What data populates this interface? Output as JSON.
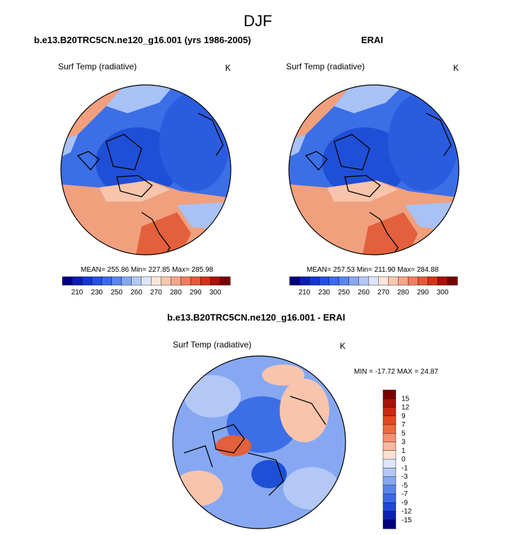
{
  "page": {
    "title": "DJF"
  },
  "panels": [
    {
      "title": "b.e13.B20TRC5CN.ne120_g16.001 (yrs 1986-2005)",
      "variable": "Surf Temp (radiative)",
      "units": "K",
      "stats": "MEAN= 255.86  Min= 227.85  Max= 285.98"
    },
    {
      "title": "ERAI",
      "variable": "Surf Temp (radiative)",
      "units": "K",
      "stats": "MEAN= 257.53  Min= 211.90  Max= 284.88"
    },
    {
      "title": "b.e13.B20TRC5CN.ne120_g16.001 - ERAI",
      "variable": "Surf Temp (radiative)",
      "units": "K",
      "stats": "MIN = -17.72 MAX =  24.87"
    }
  ],
  "abs_colorbar": {
    "labels": [
      "210",
      "230",
      "250",
      "260",
      "270",
      "280",
      "290",
      "300"
    ],
    "colors": [
      "#00007f",
      "#0a1fb0",
      "#1437d0",
      "#2450e0",
      "#3a6ae8",
      "#5a86ee",
      "#86a8f2",
      "#b4c8f6",
      "#dde6fa",
      "#fbe6dc",
      "#f8c8b0",
      "#f4a688",
      "#ee8060",
      "#e45a3a",
      "#d03418",
      "#a81208",
      "#7a0000"
    ]
  },
  "diff_colorbar": {
    "labels": [
      "15",
      "12",
      "9",
      "7",
      "5",
      "3",
      "1",
      "0",
      "-1",
      "-3",
      "-5",
      "-7",
      "-9",
      "-12",
      "-15"
    ],
    "colors": [
      "#7a0000",
      "#a81208",
      "#cc2a10",
      "#e4481e",
      "#ee6a3c",
      "#f49070",
      "#f8b8a0",
      "#fbe0d4",
      "#dce6fa",
      "#b4c8f6",
      "#86a8f2",
      "#5a86ee",
      "#3a6ae8",
      "#1e48d8",
      "#0a22b0",
      "#00007f"
    ]
  },
  "map_colors": {
    "cold_deep": "#1f4fd6",
    "cold": "#3c6ee6",
    "cool": "#6a94ef",
    "mild": "#a8c2f6",
    "warm_pale": "#f8c4ac",
    "warm": "#f1a07e",
    "hot": "#e2603c",
    "coast": "#000000"
  }
}
